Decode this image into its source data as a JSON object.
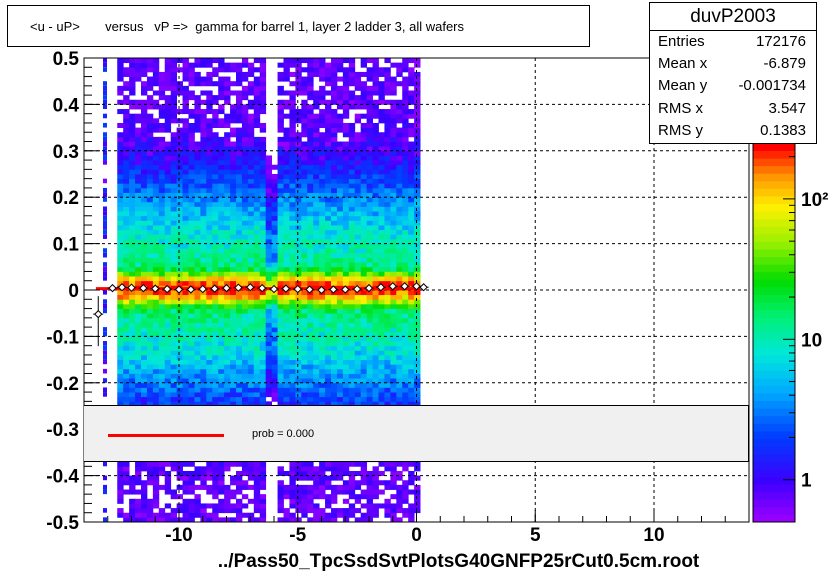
{
  "chart_data": {
    "type": "heatmap",
    "title": "<u - uP>       versus   vP =>  gamma for barrel 1, layer 2 ladder 3, all wafers",
    "xlabel": "",
    "ylabel": "",
    "xlim": [
      -14,
      14
    ],
    "ylim": [
      -0.5,
      0.5
    ],
    "x_ticks": [
      -10,
      -5,
      0,
      5,
      10
    ],
    "x_tick_labels": [
      "-10",
      "-5",
      "0",
      "5",
      "10"
    ],
    "y_ticks": [
      -0.5,
      -0.4,
      -0.3,
      -0.2,
      -0.1,
      0,
      0.1,
      0.2,
      0.3,
      0.4,
      0.5
    ],
    "y_tick_labels": [
      "-0.5",
      "-0.4",
      "-0.3",
      "-0.2",
      "-0.1",
      "0",
      "0.1",
      "0.2",
      "0.3",
      "0.4",
      "0.5"
    ],
    "grid": true,
    "z_scale": "log",
    "z_tick_labels": [
      "1",
      "10",
      "10²"
    ],
    "z_ticks": [
      1,
      10,
      100
    ],
    "zlim": [
      0.5,
      250
    ],
    "data_x_range": [
      -12.6,
      0.0
    ],
    "profile_points": {
      "x": [
        -13.4,
        -12.8,
        -12.4,
        -12.0,
        -11.5,
        -11.0,
        -10.5,
        -10.0,
        -9.5,
        -9.0,
        -8.5,
        -8.0,
        -7.5,
        -7.0,
        -6.5,
        -6.0,
        -5.5,
        -5.0,
        -4.5,
        -4.0,
        -3.5,
        -3.0,
        -2.5,
        -2.0,
        -1.5,
        -1.0,
        -0.5,
        0.0,
        0.3
      ],
      "y": [
        -0.052,
        0.004,
        0.006,
        0.005,
        0.004,
        0.003,
        0.002,
        0.001,
        0.001,
        0.002,
        0.003,
        0.004,
        0.005,
        0.006,
        0.004,
        0.002,
        0.003,
        0.002,
        0.001,
        0.0,
        0.001,
        0.001,
        0.002,
        0.004,
        0.006,
        0.008,
        0.008,
        0.008,
        0.006
      ]
    },
    "fit_line": {
      "x": [
        -13.5,
        0.0
      ],
      "y": [
        0.003,
        0.003
      ],
      "color": "#ff0000"
    },
    "stats": {
      "name": "duvP2003",
      "entries_label": "Entries",
      "entries": "172176",
      "meanx_label": "Mean x",
      "meanx": "-6.879",
      "meany_label": "Mean y",
      "meany": "-0.001734",
      "rmsx_label": "RMS x",
      "rmsx": "3.547",
      "rmsy_label": "RMS y",
      "rmsy": "0.1383"
    },
    "fit_legend": "prob = 0.000",
    "footer": "../Pass50_TpcSsdSvtPlotsG40GNFP25rCut0.5cm.root"
  }
}
